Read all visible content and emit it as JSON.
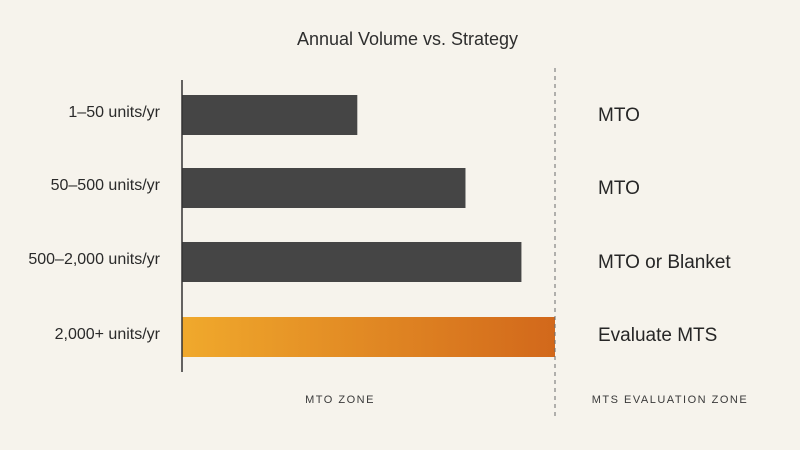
{
  "colors": {
    "background": "#f6f3ec",
    "bar_dark": "#454545",
    "bar_highlight_start": "#f0a92c",
    "bar_highlight_end": "#d2681b",
    "axis": "#333333",
    "divider": "#6b6b6b"
  },
  "chart_data": {
    "type": "bar",
    "orientation": "horizontal",
    "title": "Annual Volume vs. Strategy",
    "xlabel": "",
    "ylabel": "",
    "categories": [
      "1–50 units/yr",
      "50–500 units/yr",
      "500–2,000 units/yr",
      "2,000+ units/yr"
    ],
    "values": [
      0.47,
      0.76,
      0.91,
      1.0
    ],
    "xlim": [
      0,
      1
    ],
    "strategies": [
      "MTO",
      "MTO",
      "MTO or Blanket",
      "Evaluate MTS"
    ],
    "highlighted_index": 3,
    "zones": [
      "MTO ZONE",
      "MTS EVALUATION ZONE"
    ],
    "divider_style": "dashed vertical line",
    "grid": false,
    "legend": "none"
  }
}
